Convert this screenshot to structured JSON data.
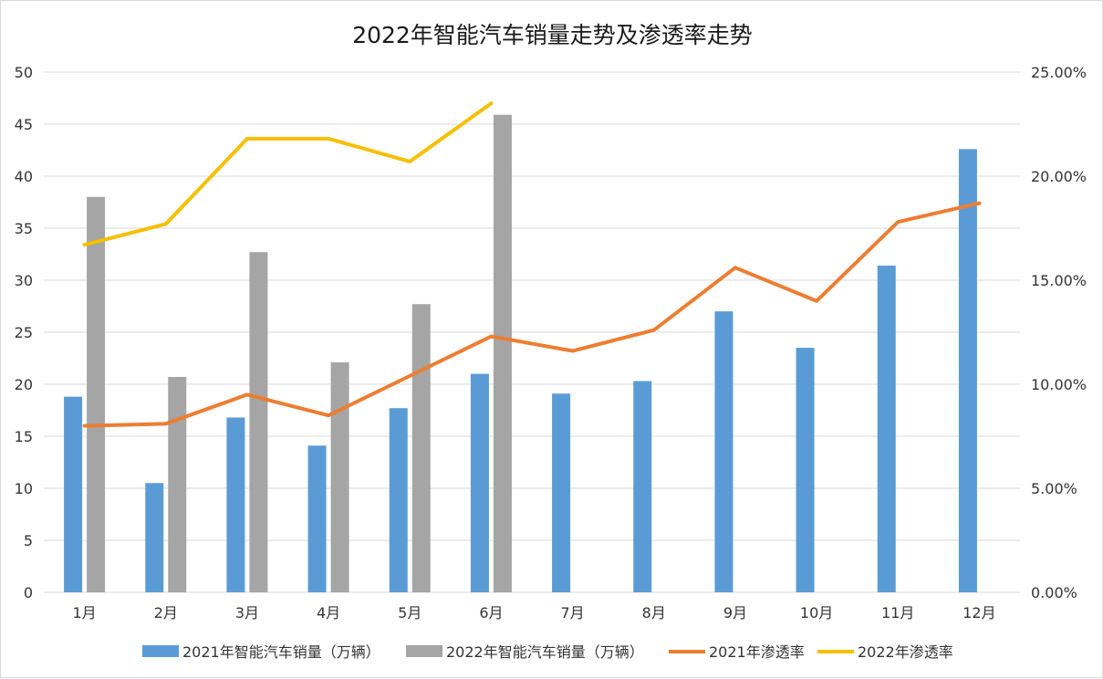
{
  "chart_data": {
    "type": "bar",
    "title": "2022年智能汽车销量走势及渗透率走势",
    "categories": [
      "1月",
      "2月",
      "3月",
      "4月",
      "5月",
      "6月",
      "7月",
      "8月",
      "9月",
      "10月",
      "11月",
      "12月"
    ],
    "y_left": {
      "min": 0,
      "max": 50,
      "step": 5,
      "ticks": [
        "0",
        "5",
        "10",
        "15",
        "20",
        "25",
        "30",
        "35",
        "40",
        "45",
        "50"
      ]
    },
    "y_right": {
      "min": 0,
      "max": 25,
      "step": 5,
      "ticks": [
        "0.00%",
        "5.00%",
        "10.00%",
        "15.00%",
        "20.00%",
        "25.00%"
      ]
    },
    "grid": true,
    "legend_position": "bottom",
    "bar_series": [
      {
        "name": "2021年智能汽车销量（万辆）",
        "color": "#5b9bd5",
        "values": [
          18.8,
          10.5,
          16.8,
          14.1,
          17.7,
          21.0,
          19.1,
          20.3,
          27.0,
          23.5,
          31.4,
          42.6
        ]
      },
      {
        "name": "2022年智能汽车销量（万辆）",
        "color": "#a5a5a5",
        "values": [
          38.0,
          20.7,
          32.7,
          22.1,
          27.7,
          45.9,
          null,
          null,
          null,
          null,
          null,
          null
        ]
      }
    ],
    "line_series": [
      {
        "name": "2021年渗透率",
        "color": "#ed7d31",
        "values": [
          8.0,
          8.1,
          9.5,
          8.5,
          10.4,
          12.3,
          11.6,
          12.6,
          15.6,
          14.0,
          17.8,
          18.7
        ]
      },
      {
        "name": "2022年渗透率",
        "color": "#f5c000",
        "values": [
          16.7,
          17.7,
          21.8,
          21.8,
          20.7,
          23.5,
          null,
          null,
          null,
          null,
          null,
          null
        ]
      }
    ]
  }
}
